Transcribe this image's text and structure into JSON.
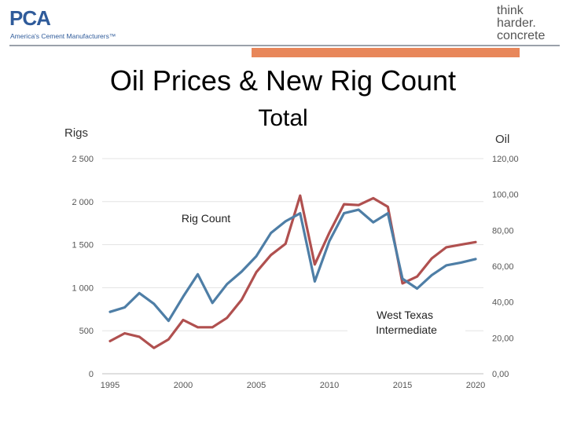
{
  "header": {
    "logo_left_text": "PCA",
    "logo_left_tagline": "America's Cement Manufacturers™",
    "logo_right_lines": [
      "think",
      "harder.",
      "concrete"
    ]
  },
  "chart_data": {
    "type": "line",
    "title": "Oil Prices & New Rig Count",
    "subtitle": "Total",
    "ylabel_left": "Rigs",
    "ylabel_right": "Oil",
    "x_ticks": [
      "1995",
      "2000",
      "2005",
      "2010",
      "2015",
      "2020"
    ],
    "xlim": [
      1995,
      2020
    ],
    "ylim_left": [
      0,
      2500
    ],
    "ylim_right": [
      0,
      120
    ],
    "y_ticks_left": [
      "0",
      "500",
      "1 000",
      "1 500",
      "2 000",
      "2 500"
    ],
    "y_ticks_right": [
      "0,00",
      "20,00",
      "40,00",
      "60,00",
      "80,00",
      "100,00",
      "120,00"
    ],
    "grid": "horizontal",
    "x": [
      1995,
      1996,
      1997,
      1998,
      1999,
      2000,
      2001,
      2002,
      2003,
      2004,
      2005,
      2006,
      2007,
      2008,
      2009,
      2010,
      2011,
      2012,
      2013,
      2014,
      2015,
      2016,
      2017,
      2018,
      2019,
      2020
    ],
    "series": [
      {
        "name": "Rig Count",
        "axis": "left",
        "color": "#b0504f",
        "values": [
          380,
          470,
          430,
          300,
          400,
          625,
          540,
          540,
          650,
          860,
          1180,
          1380,
          1510,
          2070,
          1270,
          1640,
          1970,
          1960,
          2040,
          1940,
          1050,
          1130,
          1340,
          1470,
          1500,
          1530
        ]
      },
      {
        "name": "West Texas Intermediate",
        "axis": "right",
        "color": "#4e7ea6",
        "values": [
          34.5,
          37,
          45,
          39,
          29.5,
          43,
          55.5,
          39.5,
          50,
          57,
          65.5,
          78.5,
          85,
          89.5,
          51.5,
          74,
          89.5,
          91.5,
          84.5,
          89.5,
          53,
          47.5,
          55,
          60.5,
          62,
          64
        ]
      }
    ]
  }
}
